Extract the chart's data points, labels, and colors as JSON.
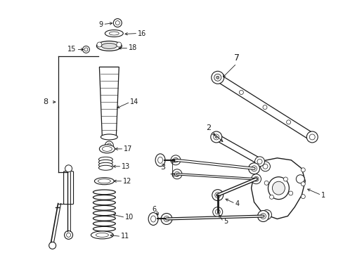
{
  "background_color": "#ffffff",
  "line_color": "#1a1a1a",
  "text_color": "#1a1a1a",
  "fig_width": 4.89,
  "fig_height": 3.6,
  "dpi": 100,
  "font_size": 7.0
}
